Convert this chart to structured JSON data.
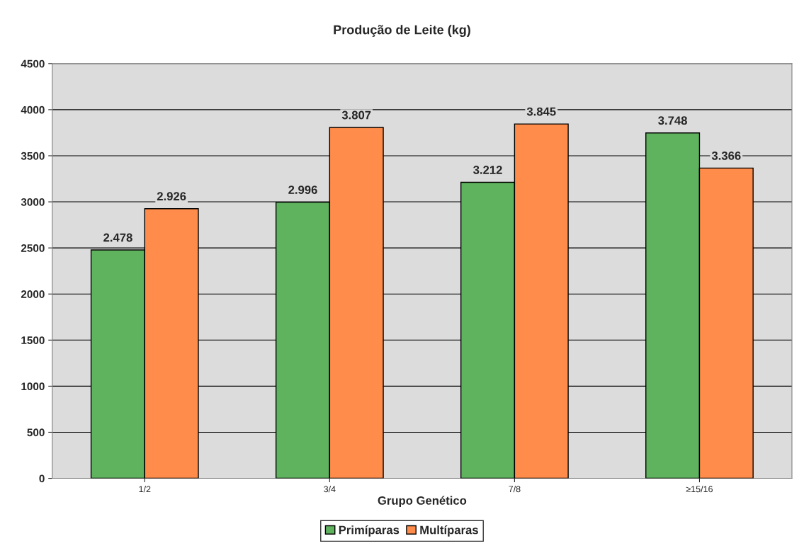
{
  "chart_data": {
    "type": "bar",
    "title": "Produção de Leite (kg)",
    "xlabel": "Grupo Genético",
    "categories": [
      "1/2",
      "3/4",
      "7/8",
      "≥15/16"
    ],
    "series": [
      {
        "name": "Primíparas",
        "color": "#5fb35f",
        "values": [
          2478,
          2996,
          3212,
          3748
        ],
        "value_labels": [
          "2.478",
          "2.996",
          "3.212",
          "3.748"
        ]
      },
      {
        "name": "Multíparas",
        "color": "#ff8c4a",
        "values": [
          2926,
          3807,
          3845,
          3366
        ],
        "value_labels": [
          "2.926",
          "3.807",
          "3.845",
          "3.366"
        ]
      }
    ],
    "ylim": [
      0,
      4500
    ],
    "yticks": [
      0,
      500,
      1000,
      1500,
      2000,
      2500,
      3000,
      3500,
      4000,
      4500
    ],
    "grid": "y",
    "legend": "bottom"
  }
}
